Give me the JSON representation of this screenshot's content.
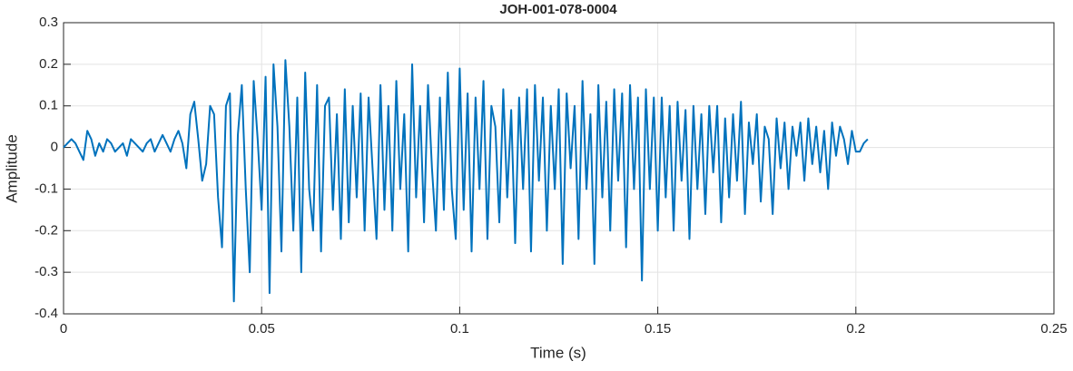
{
  "chart_data": {
    "type": "line",
    "title": "JOH-001-078-0004",
    "x_label": "Time (s)",
    "y_label": "Amplitude",
    "color": "#0072bd",
    "grid": true,
    "xlim": [
      0,
      0.25
    ],
    "xticks": [
      0,
      0.05,
      0.1,
      0.15,
      0.2,
      0.25
    ],
    "ylim": [
      -0.4,
      0.3
    ],
    "yticks": [
      -0.4,
      -0.3,
      -0.2,
      -0.1,
      0,
      0.1,
      0.2,
      0.3
    ],
    "x": [
      0,
      0.001,
      0.002,
      0.003,
      0.004,
      0.005,
      0.006,
      0.007,
      0.008,
      0.009,
      0.01,
      0.011,
      0.012,
      0.013,
      0.014,
      0.015,
      0.016,
      0.017,
      0.018,
      0.019,
      0.02,
      0.021,
      0.022,
      0.023,
      0.024,
      0.025,
      0.026,
      0.027,
      0.028,
      0.029,
      0.03,
      0.031,
      0.032,
      0.033,
      0.034,
      0.035,
      0.036,
      0.037,
      0.038,
      0.039,
      0.04,
      0.041,
      0.042,
      0.043,
      0.044,
      0.045,
      0.046,
      0.047,
      0.048,
      0.049,
      0.05,
      0.051,
      0.052,
      0.053,
      0.054,
      0.055,
      0.056,
      0.057,
      0.058,
      0.059,
      0.06,
      0.061,
      0.062,
      0.063,
      0.064,
      0.065,
      0.066,
      0.067,
      0.068,
      0.069,
      0.07,
      0.071,
      0.072,
      0.073,
      0.074,
      0.075,
      0.076,
      0.077,
      0.078,
      0.079,
      0.08,
      0.081,
      0.082,
      0.083,
      0.084,
      0.085,
      0.086,
      0.087,
      0.088,
      0.089,
      0.09,
      0.091,
      0.092,
      0.093,
      0.094,
      0.095,
      0.096,
      0.097,
      0.098,
      0.099,
      0.1,
      0.101,
      0.102,
      0.103,
      0.104,
      0.105,
      0.106,
      0.107,
      0.108,
      0.109,
      0.11,
      0.111,
      0.112,
      0.113,
      0.114,
      0.115,
      0.116,
      0.117,
      0.118,
      0.119,
      0.12,
      0.121,
      0.122,
      0.123,
      0.124,
      0.125,
      0.126,
      0.127,
      0.128,
      0.129,
      0.13,
      0.131,
      0.132,
      0.133,
      0.134,
      0.135,
      0.136,
      0.137,
      0.138,
      0.139,
      0.14,
      0.141,
      0.142,
      0.143,
      0.144,
      0.145,
      0.146,
      0.147,
      0.148,
      0.149,
      0.15,
      0.151,
      0.152,
      0.153,
      0.154,
      0.155,
      0.156,
      0.157,
      0.158,
      0.159,
      0.16,
      0.161,
      0.162,
      0.163,
      0.164,
      0.165,
      0.166,
      0.167,
      0.168,
      0.169,
      0.17,
      0.171,
      0.172,
      0.173,
      0.174,
      0.175,
      0.176,
      0.177,
      0.178,
      0.179,
      0.18,
      0.181,
      0.182,
      0.183,
      0.184,
      0.185,
      0.186,
      0.187,
      0.188,
      0.189,
      0.19,
      0.191,
      0.192,
      0.193,
      0.194,
      0.195,
      0.196,
      0.197,
      0.198,
      0.199,
      0.2,
      0.201,
      0.202,
      0.203
    ],
    "values": [
      0,
      0.01,
      0.02,
      0.01,
      -0.01,
      -0.03,
      0.04,
      0.02,
      -0.02,
      0.01,
      -0.01,
      0.02,
      0.01,
      -0.01,
      0,
      0.01,
      -0.02,
      0.02,
      0.01,
      0,
      -0.01,
      0.01,
      0.02,
      -0.01,
      0.01,
      0.03,
      0.01,
      -0.01,
      0.02,
      0.04,
      0.01,
      -0.05,
      0.08,
      0.11,
      0.02,
      -0.08,
      -0.04,
      0.1,
      0.08,
      -0.12,
      -0.24,
      0.1,
      0.13,
      -0.37,
      0.03,
      0.15,
      -0.1,
      -0.3,
      0.16,
      0.02,
      -0.15,
      0.17,
      -0.35,
      0.2,
      0.05,
      -0.25,
      0.21,
      0.05,
      -0.2,
      0.12,
      -0.3,
      0.18,
      -0.1,
      -0.2,
      0.15,
      -0.25,
      0.1,
      0.12,
      -0.15,
      0.08,
      -0.22,
      0.14,
      -0.18,
      0.1,
      -0.12,
      0.13,
      -0.2,
      0.12,
      -0.05,
      -0.22,
      0.15,
      -0.15,
      0.1,
      -0.2,
      0.16,
      -0.1,
      0.08,
      -0.25,
      0.2,
      -0.12,
      0.1,
      -0.18,
      0.15,
      -0.05,
      -0.2,
      0.12,
      -0.15,
      0.18,
      -0.1,
      -0.22,
      0.19,
      -0.15,
      0.13,
      -0.25,
      0.12,
      -0.1,
      0.16,
      -0.22,
      0.1,
      0.05,
      -0.18,
      0.14,
      -0.12,
      0.09,
      -0.23,
      0.12,
      -0.1,
      0.14,
      -0.25,
      0.15,
      -0.08,
      0.12,
      -0.2,
      0.1,
      -0.1,
      0.14,
      -0.28,
      0.13,
      -0.05,
      0.1,
      -0.22,
      0.16,
      -0.1,
      0.08,
      -0.28,
      0.15,
      -0.12,
      0.11,
      -0.2,
      0.14,
      -0.08,
      0.13,
      -0.24,
      0.15,
      -0.1,
      0.12,
      -0.32,
      0.14,
      -0.1,
      0.12,
      -0.2,
      0.12,
      -0.12,
      0.1,
      -0.2,
      0.11,
      -0.08,
      0.09,
      -0.22,
      0.1,
      -0.1,
      0.08,
      -0.16,
      0.1,
      -0.06,
      0.1,
      -0.18,
      0.07,
      -0.12,
      0.08,
      -0.08,
      0.11,
      -0.16,
      0.06,
      -0.04,
      0.08,
      -0.13,
      0.05,
      0.02,
      -0.16,
      0.07,
      -0.05,
      0.06,
      -0.1,
      0.05,
      -0.02,
      0.06,
      -0.08,
      0.07,
      -0.04,
      0.05,
      -0.06,
      0.04,
      -0.1,
      0.06,
      -0.02,
      0.05,
      0.02,
      -0.04,
      0.04,
      -0.01,
      -0.01,
      0.01,
      0.02
    ]
  }
}
